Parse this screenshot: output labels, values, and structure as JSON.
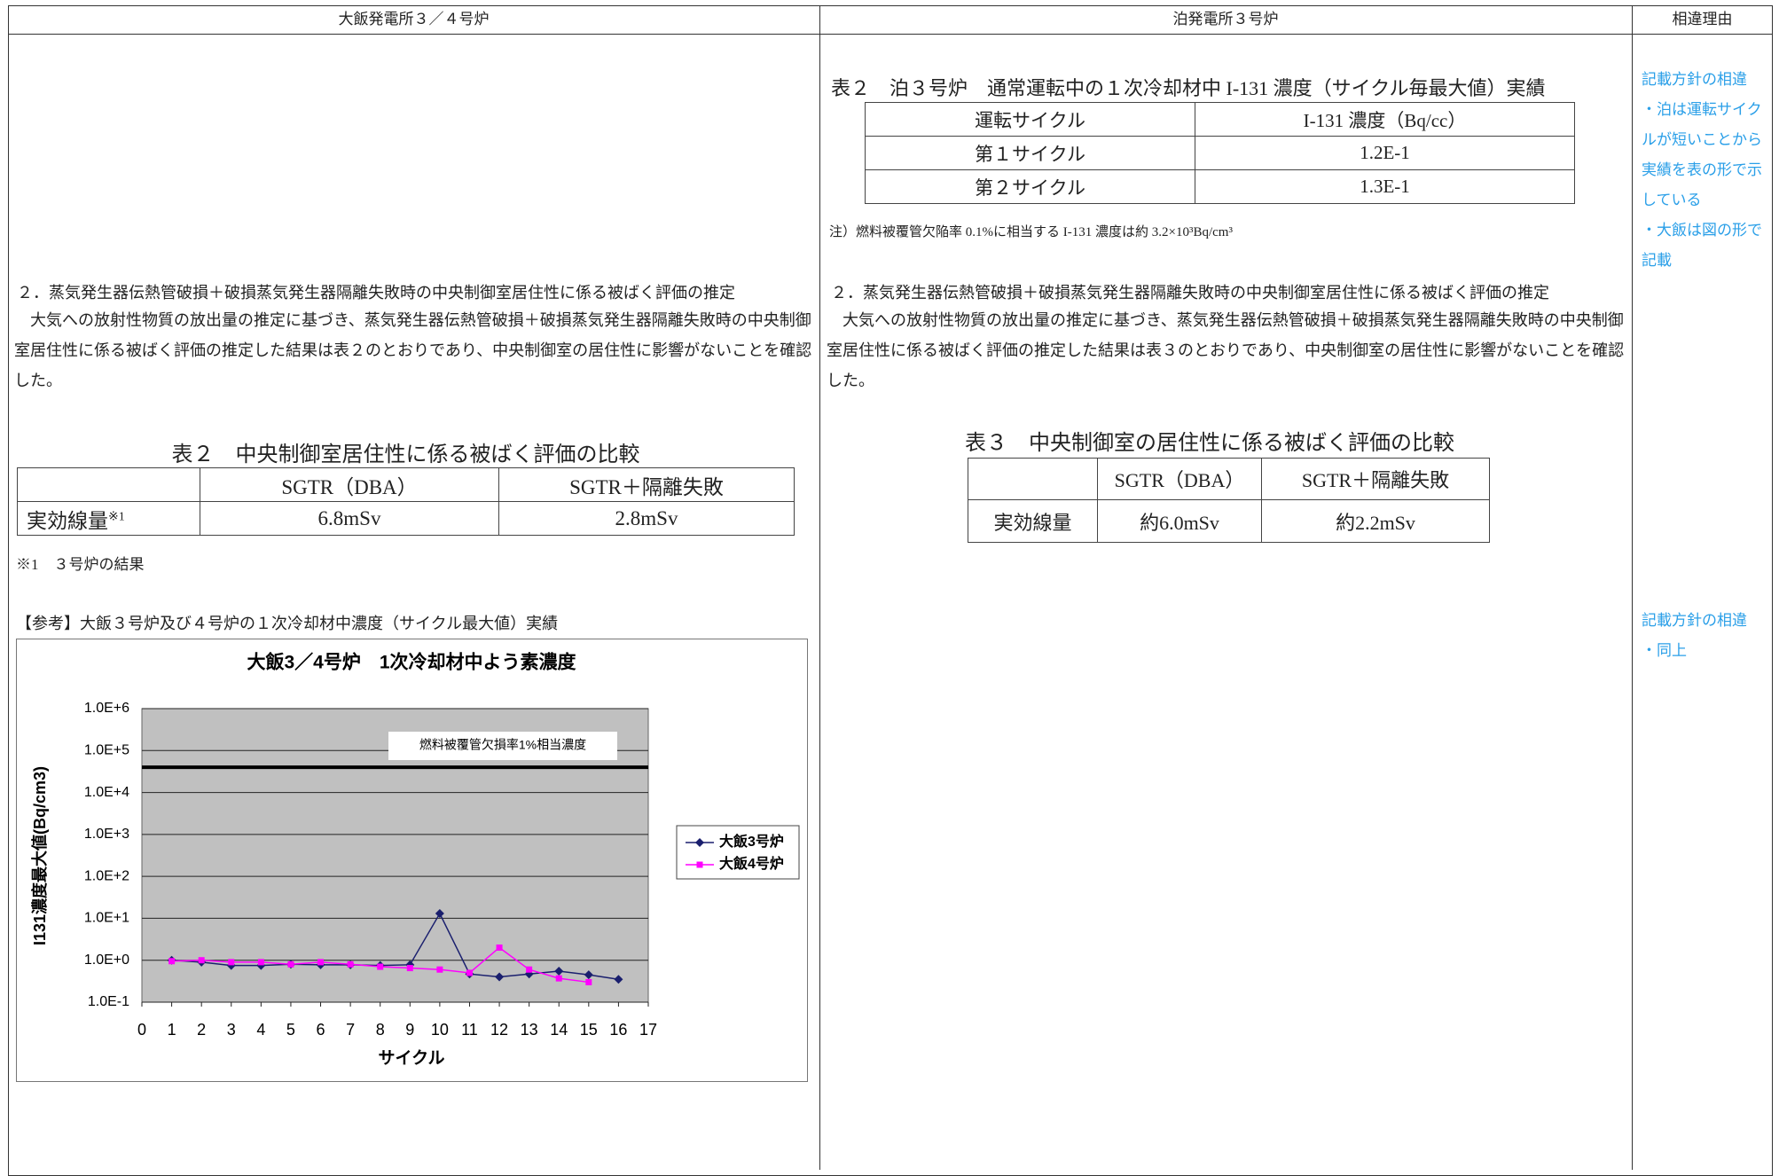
{
  "header": {
    "left": "大飯発電所３／４号炉",
    "center": "泊発電所３号炉",
    "right": "相違理由"
  },
  "left": {
    "section_title": "２．蒸気発生器伝熱管破損＋破損蒸気発生器隔離失敗時の中央制御室居住性に係る被ばく評価の推定",
    "body": "大気への放射性物質の放出量の推定に基づき、蒸気発生器伝熱管破損＋破損蒸気発生器隔離失敗時の中央制御室居住性に係る被ばく評価の推定した結果は表２のとおりであり、中央制御室の居住性に影響がないことを確認した。",
    "table_caption": "表２　中央制御室居住性に係る被ばく評価の比較",
    "table": {
      "header": [
        "SGTR（DBA）",
        "SGTR＋隔離失敗"
      ],
      "row_label": "実効線量",
      "row_mark": "※1",
      "cells": [
        "6.8mSv",
        "2.8mSv"
      ]
    },
    "footnote": "※1　３号炉の結果",
    "reference": "【参考】大飯３号炉及び４号炉の１次冷却材中濃度（サイクル最大値）実績",
    "chart": {
      "type": "line",
      "title": "大飯3／4号炉　1次冷却材中よう素濃度",
      "x_label": "サイクル",
      "y_label": "I131濃度最大値(Bq/cm3)",
      "log_scale": true,
      "xlim": [
        0,
        17
      ],
      "xticks": [
        0,
        1,
        2,
        3,
        4,
        5,
        6,
        7,
        8,
        9,
        10,
        11,
        12,
        13,
        14,
        15,
        16,
        17
      ],
      "ylim": [
        0.1,
        1000000
      ],
      "yticks": [
        {
          "value": 0.1,
          "label": "1.0E-1"
        },
        {
          "value": 1,
          "label": "1.0E+0"
        },
        {
          "value": 10,
          "label": "1.0E+1"
        },
        {
          "value": 100,
          "label": "1.0E+2"
        },
        {
          "value": 1000,
          "label": "1.0E+3"
        },
        {
          "value": 10000,
          "label": "1.0E+4"
        },
        {
          "value": 100000,
          "label": "1.0E+5"
        },
        {
          "value": 1000000,
          "label": "1.0E+6"
        }
      ],
      "grid": true,
      "threshold": {
        "value": 40000,
        "label": "燃料被覆管欠損率1%相当濃度"
      },
      "series": [
        {
          "name": "大飯3号炉",
          "color": "#1a1f6e",
          "marker": "diamond",
          "x": [
            1,
            2,
            3,
            4,
            5,
            6,
            7,
            8,
            9,
            10,
            11,
            12,
            13,
            14,
            15,
            16
          ],
          "values": [
            1.0,
            0.9,
            0.75,
            0.75,
            0.8,
            0.78,
            0.78,
            0.75,
            0.78,
            13,
            0.47,
            0.4,
            0.47,
            0.55,
            0.45,
            0.35
          ]
        },
        {
          "name": "大飯4号炉",
          "color": "#ff00ff",
          "marker": "square",
          "x": [
            1,
            2,
            3,
            4,
            5,
            6,
            7,
            8,
            9,
            10,
            11,
            12,
            13,
            14,
            15
          ],
          "values": [
            0.95,
            1.0,
            0.9,
            0.9,
            0.8,
            0.9,
            0.8,
            0.7,
            0.65,
            0.6,
            0.5,
            2.0,
            0.6,
            0.37,
            0.3
          ]
        }
      ]
    }
  },
  "center": {
    "table_caption": "表２　泊３号炉　通常運転中の１次冷却材中 I-131 濃度（サイクル毎最大値）実績",
    "table": {
      "header": [
        "運転サイクル",
        "I-131 濃度（Bq/cc）"
      ],
      "rows": [
        [
          "第１サイクル",
          "1.2E-1"
        ],
        [
          "第２サイクル",
          "1.3E-1"
        ]
      ]
    },
    "note": "注）燃料被覆管欠陥率 0.1%に相当する I-131 濃度は約 3.2×10³Bq/cm³",
    "section_title": "２．蒸気発生器伝熱管破損＋破損蒸気発生器隔離失敗時の中央制御室居住性に係る被ばく評価の推定",
    "body": "大気への放射性物質の放出量の推定に基づき、蒸気発生器伝熱管破損＋破損蒸気発生器隔離失敗時の中央制御室居住性に係る被ばく評価の推定した結果は表３のとおりであり、中央制御室の居住性に影響がないことを確認した。",
    "table3_caption": "表３　中央制御室の居住性に係る被ばく評価の比較",
    "table3": {
      "header": [
        "SGTR（DBA）",
        "SGTR＋隔離失敗"
      ],
      "row_label": "実効線量",
      "cells": [
        "約6.0mSv",
        "約2.2mSv"
      ]
    }
  },
  "right": {
    "notes": [
      [
        "記載方針の相違",
        "・泊は運転サイクルが短いことから実績を表の形で示している",
        "・大飯は図の形で記載"
      ],
      [
        "記載方針の相違",
        "・同上"
      ]
    ]
  }
}
